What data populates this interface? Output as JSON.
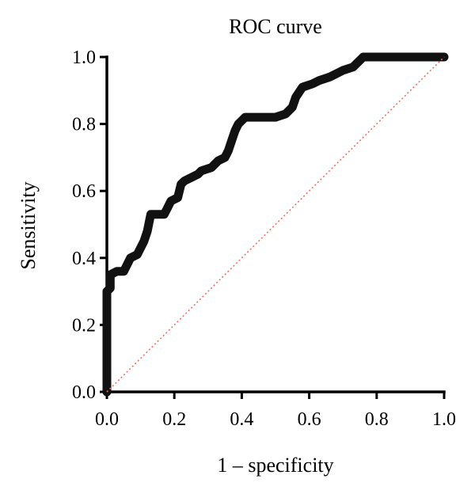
{
  "chart_data": {
    "type": "line",
    "title": "ROC curve",
    "xlabel": "1 – specificity",
    "ylabel": "Sensitivity",
    "xlim": [
      0,
      1
    ],
    "ylim": [
      0,
      1
    ],
    "x_ticks": [
      "0.0",
      "0.2",
      "0.4",
      "0.6",
      "0.8",
      "1.0"
    ],
    "y_ticks": [
      "0.0",
      "0.2",
      "0.4",
      "0.6",
      "0.8",
      "1.0"
    ],
    "grid": false,
    "legend": "none",
    "series": [
      {
        "role": "roc",
        "color": "#111111",
        "x": [
          0.0,
          0.0,
          0.01,
          0.01,
          0.03,
          0.05,
          0.06,
          0.07,
          0.09,
          0.1,
          0.11,
          0.12,
          0.13,
          0.17,
          0.18,
          0.19,
          0.21,
          0.22,
          0.23,
          0.25,
          0.27,
          0.28,
          0.31,
          0.33,
          0.35,
          0.36,
          0.37,
          0.38,
          0.39,
          0.41,
          0.43,
          0.47,
          0.5,
          0.53,
          0.55,
          0.56,
          0.58,
          0.61,
          0.63,
          0.66,
          0.68,
          0.7,
          0.73,
          0.76,
          0.8,
          0.85,
          0.9,
          0.95,
          1.0
        ],
        "y": [
          0.0,
          0.3,
          0.31,
          0.35,
          0.36,
          0.36,
          0.38,
          0.4,
          0.41,
          0.43,
          0.45,
          0.48,
          0.53,
          0.53,
          0.55,
          0.57,
          0.58,
          0.62,
          0.63,
          0.64,
          0.65,
          0.66,
          0.67,
          0.69,
          0.7,
          0.72,
          0.75,
          0.78,
          0.8,
          0.82,
          0.82,
          0.82,
          0.82,
          0.83,
          0.85,
          0.88,
          0.91,
          0.92,
          0.93,
          0.94,
          0.95,
          0.96,
          0.97,
          1.0,
          1.0,
          1.0,
          1.0,
          1.0,
          1.0
        ]
      },
      {
        "role": "reference",
        "color": "#f07060",
        "x": [
          0,
          1
        ],
        "y": [
          0,
          1
        ]
      }
    ]
  }
}
